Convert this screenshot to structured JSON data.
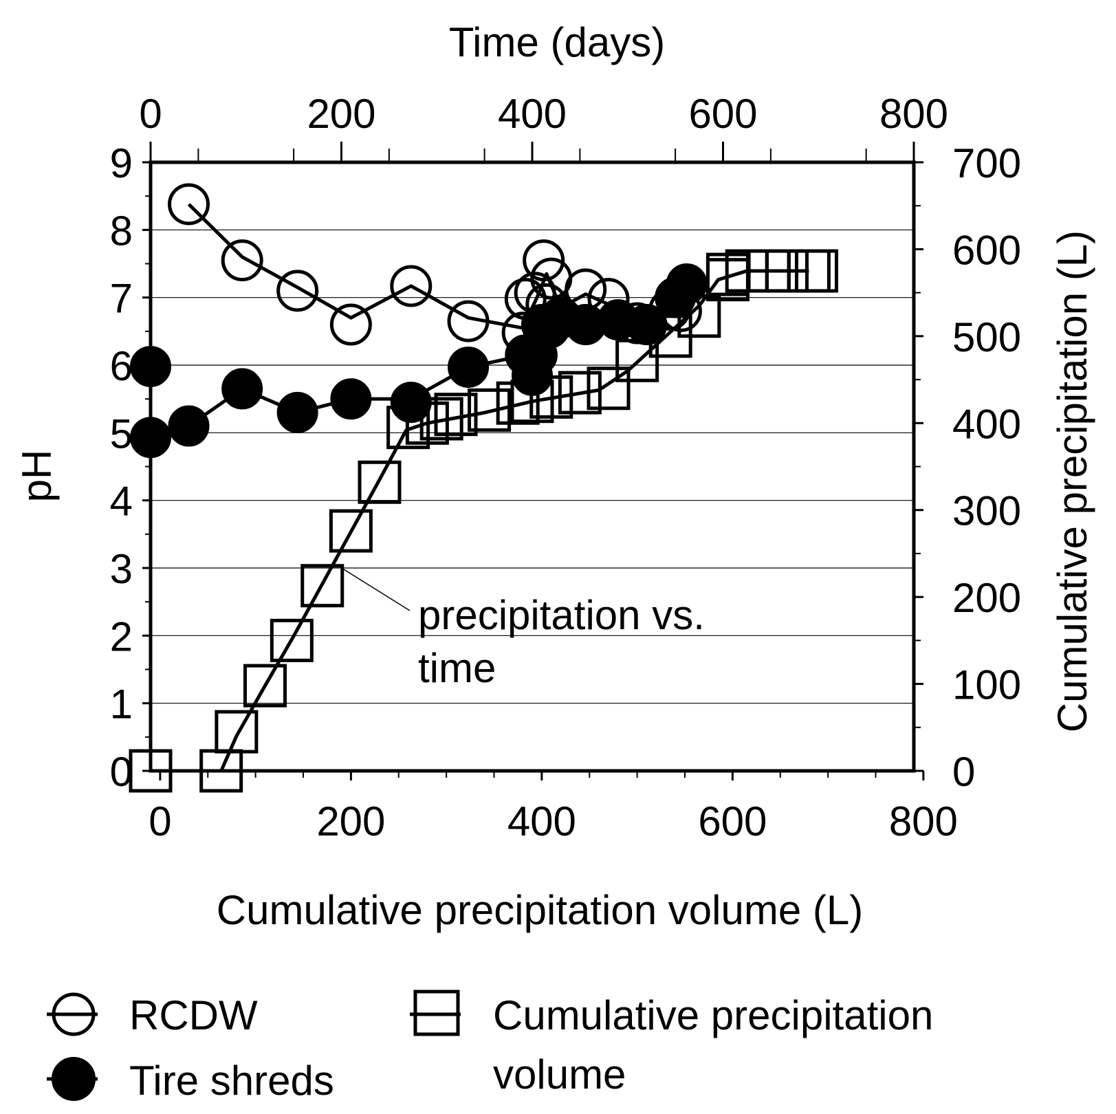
{
  "chart_data": {
    "type": "scatter",
    "x_bottom_label": "Cumulative precipitation volume (L)",
    "x_top_label": "Time (days)",
    "y_left_label": "pH",
    "y_right_label": "Cumulative precipitation (L)",
    "x_bottom_ticks": [
      "0",
      "200",
      "400",
      "600",
      "800"
    ],
    "x_top_ticks": [
      "0",
      "200",
      "400",
      "600",
      "800"
    ],
    "y_left_ticks": [
      "0",
      "1",
      "2",
      "3",
      "4",
      "5",
      "6",
      "7",
      "8",
      "9"
    ],
    "y_right_ticks": [
      "0",
      "100",
      "200",
      "300",
      "400",
      "500",
      "600",
      "700"
    ],
    "x_bottom_range": [
      -10,
      790
    ],
    "x_top_range": [
      0,
      800
    ],
    "y_left_range": [
      0,
      9
    ],
    "y_right_range": [
      0,
      700
    ],
    "grid": true,
    "series": [
      {
        "name": "RCDW",
        "marker": "open-circle",
        "x_axis": "bottom",
        "y_axis": "left",
        "points": [
          [
            30,
            8.38
          ],
          [
            86,
            7.55
          ],
          [
            144,
            7.1
          ],
          [
            200,
            6.6
          ],
          [
            263,
            7.17
          ],
          [
            323,
            6.65
          ],
          [
            380,
            6.48
          ],
          [
            383,
            6.98
          ],
          [
            393,
            7.07
          ],
          [
            402,
            7.55
          ],
          [
            410,
            7.28
          ],
          [
            405,
            6.9
          ],
          [
            420,
            6.7
          ],
          [
            446,
            7.12
          ],
          [
            470,
            6.98
          ],
          [
            500,
            6.62
          ],
          [
            534,
            6.82
          ],
          [
            546,
            6.8
          ]
        ]
      },
      {
        "name": "Tire shreds",
        "marker": "filled-circle",
        "x_axis": "bottom",
        "y_axis": "left",
        "points": [
          [
            -10,
            5.98
          ],
          [
            -10,
            4.93
          ],
          [
            30,
            5.1
          ],
          [
            86,
            5.65
          ],
          [
            144,
            5.3
          ],
          [
            200,
            5.5
          ],
          [
            263,
            5.45
          ],
          [
            323,
            5.97
          ],
          [
            383,
            6.15
          ],
          [
            390,
            5.85
          ],
          [
            395,
            6.15
          ],
          [
            400,
            6.6
          ],
          [
            408,
            6.55
          ],
          [
            420,
            6.7
          ],
          [
            446,
            6.6
          ],
          [
            480,
            6.67
          ],
          [
            510,
            6.6
          ],
          [
            540,
            7.0
          ],
          [
            552,
            7.2
          ]
        ]
      },
      {
        "name": "Cumulative precipitation volume",
        "marker": "open-square",
        "x_axis": "top",
        "y_axis": "right",
        "points": [
          [
            0,
            0
          ],
          [
            74,
            0
          ],
          [
            90,
            45
          ],
          [
            120,
            98
          ],
          [
            148,
            150
          ],
          [
            180,
            213
          ],
          [
            210,
            276
          ],
          [
            240,
            332
          ],
          [
            270,
            395
          ],
          [
            290,
            400
          ],
          [
            305,
            405
          ],
          [
            320,
            410
          ],
          [
            355,
            415
          ],
          [
            385,
            423
          ],
          [
            400,
            425
          ],
          [
            420,
            430
          ],
          [
            450,
            435
          ],
          [
            480,
            440
          ],
          [
            510,
            472
          ],
          [
            545,
            500
          ],
          [
            575,
            523
          ],
          [
            605,
            565
          ],
          [
            605,
            571
          ],
          [
            625,
            575
          ],
          [
            648,
            575
          ],
          [
            667,
            575
          ],
          [
            690,
            575
          ],
          [
            698,
            575
          ]
        ]
      }
    ],
    "fit_line_days": [
      [
        74,
        0
      ],
      [
        90,
        40
      ],
      [
        120,
        98
      ],
      [
        150,
        155
      ],
      [
        180,
        215
      ],
      [
        210,
        275
      ],
      [
        240,
        335
      ],
      [
        268,
        392
      ],
      [
        290,
        400
      ],
      [
        350,
        412
      ],
      [
        400,
        425
      ],
      [
        470,
        438
      ],
      [
        500,
        460
      ],
      [
        545,
        505
      ],
      [
        575,
        535
      ],
      [
        595,
        565
      ],
      [
        625,
        575
      ],
      [
        690,
        575
      ]
    ],
    "annotation": {
      "lines": [
        "precipitation vs.",
        "time"
      ]
    },
    "legend": {
      "placement": "bottom",
      "items": [
        "RCDW",
        "Tire shreds",
        "Cumulative precipitation",
        "volume"
      ]
    }
  }
}
